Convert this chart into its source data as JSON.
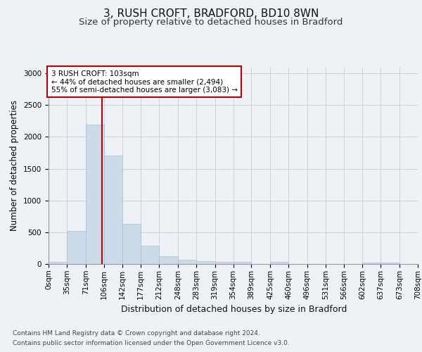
{
  "title": "3, RUSH CROFT, BRADFORD, BD10 8WN",
  "subtitle": "Size of property relative to detached houses in Bradford",
  "xlabel": "Distribution of detached houses by size in Bradford",
  "ylabel": "Number of detached properties",
  "bin_edges": [
    0,
    35,
    71,
    106,
    142,
    177,
    212,
    248,
    283,
    319,
    354,
    389,
    425,
    460,
    496,
    531,
    566,
    602,
    637,
    673,
    708
  ],
  "bar_heights": [
    30,
    520,
    2190,
    1710,
    635,
    290,
    120,
    70,
    40,
    35,
    35,
    0,
    30,
    0,
    0,
    0,
    0,
    20,
    20,
    0
  ],
  "bar_color": "#cddaea",
  "bar_edge_color": "#a8bfd4",
  "vline_x": 103,
  "vline_color": "#bb0000",
  "annotation_text": "3 RUSH CROFT: 103sqm\n← 44% of detached houses are smaller (2,494)\n55% of semi-detached houses are larger (3,083) →",
  "annotation_box_color": "#ffffff",
  "annotation_box_edge_color": "#bb0000",
  "ylim": [
    0,
    3100
  ],
  "yticks": [
    0,
    500,
    1000,
    1500,
    2000,
    2500,
    3000
  ],
  "tick_labels": [
    "0sqm",
    "35sqm",
    "71sqm",
    "106sqm",
    "142sqm",
    "177sqm",
    "212sqm",
    "248sqm",
    "283sqm",
    "319sqm",
    "354sqm",
    "389sqm",
    "425sqm",
    "460sqm",
    "496sqm",
    "531sqm",
    "566sqm",
    "602sqm",
    "637sqm",
    "673sqm",
    "708sqm"
  ],
  "footer_line1": "Contains HM Land Registry data © Crown copyright and database right 2024.",
  "footer_line2": "Contains public sector information licensed under the Open Government Licence v3.0.",
  "bg_color": "#eef2f7",
  "grid_color": "#c8cdd4",
  "title_fontsize": 11,
  "subtitle_fontsize": 9.5,
  "xlabel_fontsize": 9,
  "ylabel_fontsize": 8.5,
  "tick_fontsize": 7.5,
  "footer_fontsize": 6.5,
  "annot_fontsize": 7.5
}
